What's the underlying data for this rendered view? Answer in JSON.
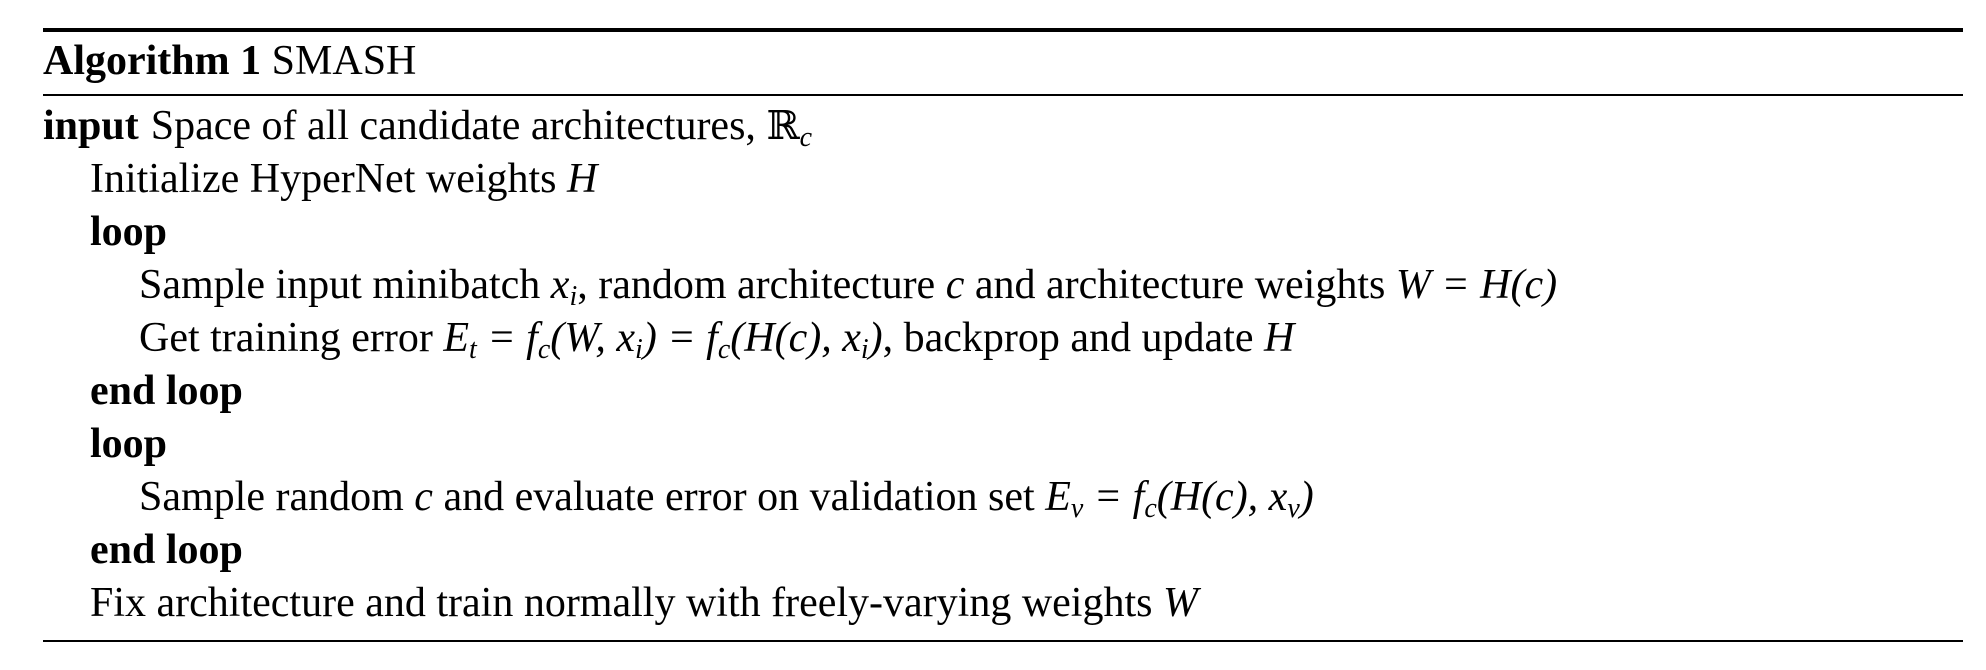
{
  "algorithm": {
    "label": "Algorithm 1",
    "name": "SMASH",
    "input_keyword": "input",
    "input_text": "Space of all candidate architectures,",
    "input_set_symbol": "ℝ",
    "input_set_sub": "c",
    "steps": {
      "init": {
        "text": "Initialize HyperNet weights",
        "var": "H"
      },
      "loop1_start": "loop",
      "sample": {
        "t1": "Sample input minibatch",
        "x": "x",
        "x_sub": "i",
        "t2": ", random architecture",
        "c": "c",
        "t3": "and architecture weights",
        "eq": "W = H(c)"
      },
      "train": {
        "t1": "Get training error",
        "E": "E",
        "E_sub": "t",
        "f1": "= f",
        "f1_sub": "c",
        "f1_args_a": "(W, x",
        "f1_args_sub": "i",
        "f1_args_b": ")",
        "f2": "= f",
        "f2_sub": "c",
        "f2_args_a": "(H(c), x",
        "f2_args_sub": "i",
        "f2_args_b": ")",
        "t2": ", backprop and update",
        "var": "H"
      },
      "loop1_end": "end loop",
      "loop2_start": "loop",
      "eval": {
        "t1": "Sample random",
        "c": "c",
        "t2": "and evaluate error on validation set",
        "E": "E",
        "E_sub": "v",
        "f": "= f",
        "f_sub": "c",
        "args_a": "(H(c), x",
        "args_sub": "v",
        "args_b": ")"
      },
      "loop2_end": "end loop",
      "final": {
        "text": "Fix architecture and train normally with freely-varying weights",
        "var": "W"
      }
    }
  }
}
